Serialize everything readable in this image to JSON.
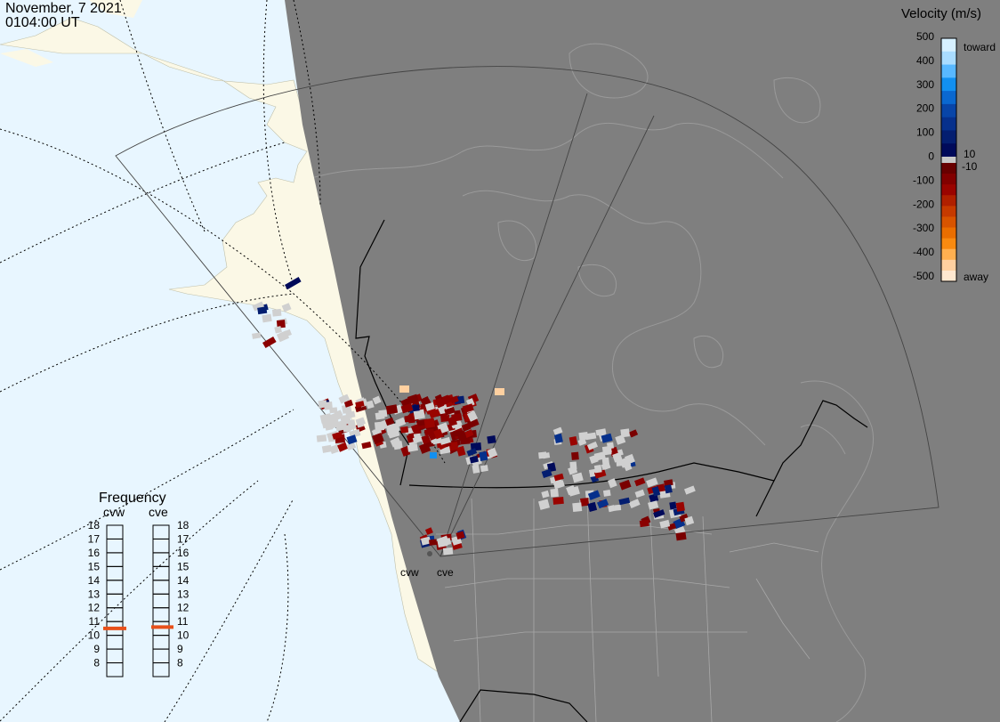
{
  "header": {
    "date": "November, 7 2021",
    "time": "0104:00 UT"
  },
  "colorbar": {
    "title": "Velocity (m/s)",
    "ticks": [
      "500",
      "400",
      "300",
      "200",
      "100",
      "0",
      "-100",
      "-200",
      "-300",
      "-400",
      "-500"
    ],
    "toward_label": "toward",
    "away_label": "away",
    "pos_gap_label": "10",
    "neg_gap_label": "-10",
    "toward_colors": [
      "#d6f0ff",
      "#a9dcff",
      "#58b8ff",
      "#1290f0",
      "#0a68d0",
      "#0845a8",
      "#06308c",
      "#041e70",
      "#000a5a"
    ],
    "away_colors": [
      "#680000",
      "#820000",
      "#9a0400",
      "#b02000",
      "#c63a00",
      "#d85400",
      "#ea6e00",
      "#f88a10",
      "#ffb050",
      "#ffd0a0",
      "#ffe8d0"
    ]
  },
  "stations": {
    "west": "cvw",
    "east": "cve"
  },
  "frequency": {
    "title": "Frequency",
    "west_label": "cvw",
    "east_label": "cve",
    "scale": [
      "18",
      "17",
      "16",
      "15",
      "14",
      "13",
      "12",
      "11",
      "10",
      "9",
      "8"
    ],
    "west_mhz": 10.5,
    "east_mhz": 10.6,
    "marker_color": "#e8501a"
  },
  "map_colors": {
    "ocean": "#e8f6ff",
    "land": "#fbf8e6",
    "night": "#7f7f7f",
    "grid": "#555555",
    "scatter": "#d0d0d0"
  }
}
